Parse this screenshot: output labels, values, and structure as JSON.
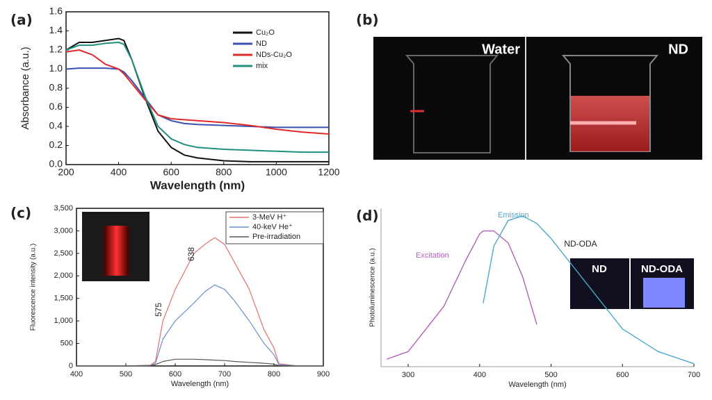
{
  "chart_data": [
    {
      "type": "line",
      "label": "(a)",
      "xlabel": "Wavelength (nm)",
      "ylabel": "Absorbance (a.u.)",
      "x": [
        200,
        250,
        300,
        350,
        400,
        420,
        450,
        500,
        550,
        600,
        650,
        700,
        800,
        900,
        1000,
        1100,
        1200
      ],
      "xlim": [
        200,
        1200
      ],
      "xticks": [
        200,
        400,
        600,
        800,
        1000,
        1200
      ],
      "ylim": [
        0,
        1.6
      ],
      "yticks": [
        {
          "value": 0,
          "label": "0.0"
        },
        0.2,
        0.4,
        0.6,
        0.8,
        {
          "value": 1,
          "label": "1.0"
        },
        1.2,
        1.4,
        1.6
      ],
      "legend": "upper right",
      "series": [
        {
          "name": "Cu₂O",
          "color": "#111111",
          "values": [
            1.2,
            1.28,
            1.28,
            1.3,
            1.32,
            1.3,
            1.1,
            0.7,
            0.35,
            0.18,
            0.1,
            0.07,
            0.04,
            0.03,
            0.03,
            0.03,
            0.03
          ]
        },
        {
          "name": "ND",
          "color": "#3b4fb0",
          "values": [
            1.0,
            1.01,
            1.01,
            1.01,
            1.0,
            0.97,
            0.88,
            0.7,
            0.52,
            0.46,
            0.43,
            0.42,
            0.41,
            0.4,
            0.39,
            0.39,
            0.39
          ]
        },
        {
          "name": "NDs-Cu₂O",
          "color": "#e02a2a",
          "values": [
            1.18,
            1.2,
            1.15,
            1.05,
            1.0,
            0.95,
            0.85,
            0.68,
            0.52,
            0.48,
            0.47,
            0.46,
            0.44,
            0.41,
            0.37,
            0.34,
            0.32
          ]
        },
        {
          "name": "mix",
          "color": "#1f8f80",
          "values": [
            1.2,
            1.25,
            1.25,
            1.27,
            1.28,
            1.26,
            1.1,
            0.72,
            0.4,
            0.27,
            0.21,
            0.18,
            0.16,
            0.15,
            0.14,
            0.13,
            0.13
          ]
        }
      ]
    },
    {
      "type": "line",
      "label": "(c)",
      "xlabel": "Wavelength (nm)",
      "ylabel": "Fluorescence intensity (a.u.)",
      "x": [
        400,
        500,
        550,
        560,
        575,
        600,
        638,
        660,
        680,
        700,
        720,
        750,
        780,
        800,
        810,
        850,
        900
      ],
      "xlim": [
        400,
        900
      ],
      "xticks": [
        400,
        500,
        600,
        700,
        800,
        900
      ],
      "ylim": [
        0,
        3500
      ],
      "yticks": [
        0,
        500,
        {
          "value": 1000,
          "label": "1,000"
        },
        {
          "value": 1500,
          "label": "1,500"
        },
        {
          "value": 2000,
          "label": "2,000"
        },
        {
          "value": 2500,
          "label": "2,500"
        },
        {
          "value": 3000,
          "label": "3,000"
        },
        {
          "value": 3500,
          "label": "3,500"
        }
      ],
      "legend": "upper right",
      "annotations": [
        "575",
        "638"
      ],
      "series": [
        {
          "name": "3-MeV H⁺",
          "color": "#e07070",
          "values": [
            0,
            0,
            20,
            100,
            1000,
            1700,
            2500,
            2700,
            2850,
            2700,
            2300,
            1700,
            800,
            400,
            50,
            0,
            0
          ]
        },
        {
          "name": "40-keV He⁺",
          "color": "#6a8fc8",
          "values": [
            0,
            0,
            10,
            60,
            600,
            1000,
            1400,
            1650,
            1800,
            1700,
            1450,
            1000,
            500,
            250,
            30,
            0,
            0
          ]
        },
        {
          "name": "Pre-irradiation",
          "color": "#555555",
          "values": [
            0,
            0,
            5,
            30,
            100,
            150,
            150,
            140,
            130,
            120,
            100,
            80,
            60,
            40,
            10,
            0,
            0
          ]
        }
      ]
    },
    {
      "type": "line",
      "label": "(d)",
      "xlabel": "Wavelength (nm)",
      "ylabel": "Photoluminescence (a.u.)",
      "x": [
        270,
        300,
        350,
        380,
        400,
        405,
        420,
        440,
        460,
        480,
        490,
        500,
        550,
        600,
        650,
        700
      ],
      "xlim": [
        262,
        700
      ],
      "xticks": [
        300,
        400,
        500,
        600,
        700
      ],
      "ylim": [
        0,
        1.05
      ],
      "legend": "none",
      "annotations": [
        "ND-ODA"
      ],
      "inset_labels": [
        "ND",
        "ND-ODA"
      ],
      "series": [
        {
          "name": "Excitation",
          "color": "#b060b8",
          "values": [
            0.05,
            0.1,
            0.4,
            0.7,
            0.88,
            0.9,
            0.9,
            0.82,
            0.6,
            0.28,
            null,
            null,
            null,
            null,
            null,
            null
          ]
        },
        {
          "name": "Emission",
          "color": "#4aa8c8",
          "values": [
            null,
            null,
            null,
            null,
            null,
            0.42,
            0.8,
            0.97,
            1.0,
            0.95,
            0.9,
            0.85,
            0.55,
            0.25,
            0.1,
            0.02
          ]
        }
      ]
    }
  ],
  "photo": {
    "label": "(b)",
    "left": "Water",
    "right": "ND"
  }
}
